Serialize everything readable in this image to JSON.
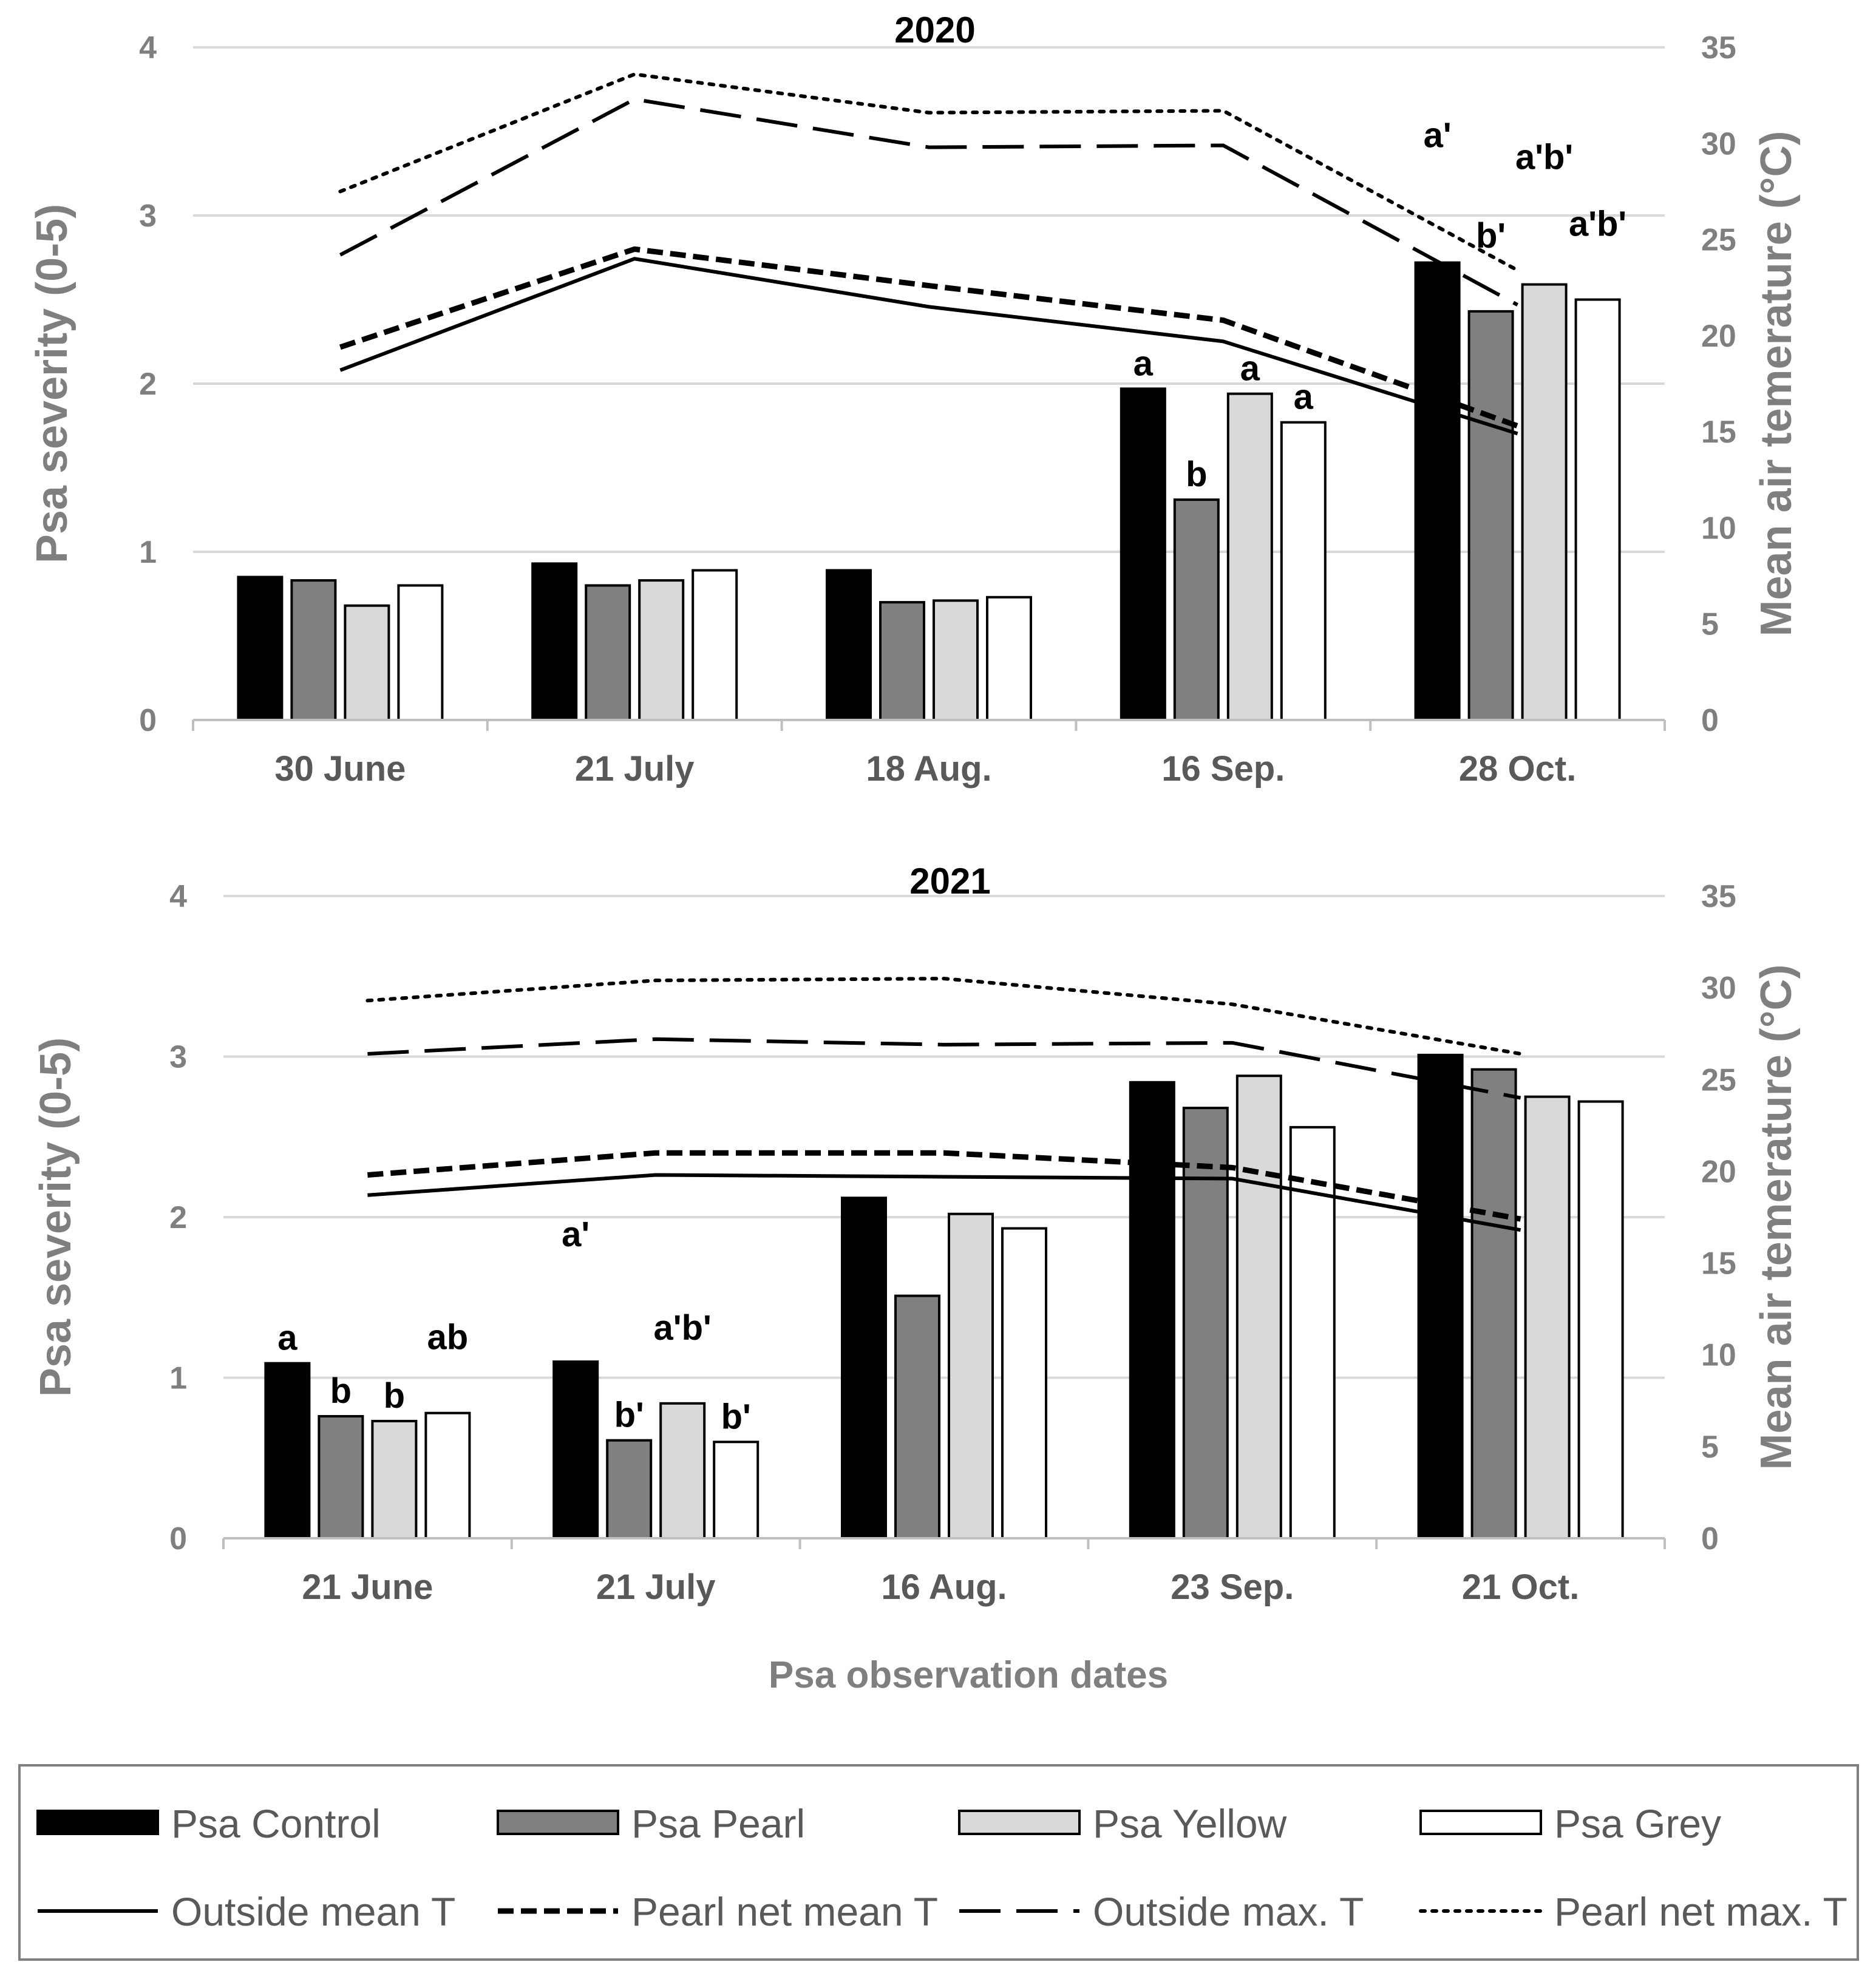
{
  "x_axis_title": "Psa observation dates",
  "legend": {
    "bars": [
      {
        "key": "control",
        "label": "Psa Control",
        "color": "#000000"
      },
      {
        "key": "pearl",
        "label": "Psa Pearl",
        "color": "#808080"
      },
      {
        "key": "yellow",
        "label": "Psa Yellow",
        "color": "#d9d9d9"
      },
      {
        "key": "grey",
        "label": "Psa Grey",
        "color": "#ffffff"
      }
    ],
    "lines": [
      {
        "key": "out_mean",
        "label": "Outside mean T",
        "style": "solid"
      },
      {
        "key": "net_mean",
        "label": "Pearl net mean T",
        "style": "short-dash"
      },
      {
        "key": "out_max",
        "label": "Outside max. T",
        "style": "long-dash"
      },
      {
        "key": "net_max",
        "label": "Pearl net max. T",
        "style": "dotted"
      }
    ]
  },
  "chart_data": [
    {
      "type": "bar",
      "title": "2020",
      "ylabel": "Psa severity (0-5)",
      "y2label": "Mean air temerature (°C)",
      "ylim": [
        0,
        4
      ],
      "yticks": [
        "0",
        "1",
        "2",
        "3",
        "4"
      ],
      "y2lim": [
        0,
        35
      ],
      "y2ticks": [
        "0",
        "5",
        "10",
        "15",
        "20",
        "25",
        "30",
        "35"
      ],
      "categories": [
        "30 June",
        "21 July",
        "18 Aug.",
        "16 Sep.",
        "28 Oct."
      ],
      "series": [
        {
          "name": "Psa Control",
          "values": [
            0.85,
            0.93,
            0.89,
            1.97,
            2.72
          ]
        },
        {
          "name": "Psa Pearl",
          "values": [
            0.83,
            0.8,
            0.7,
            1.31,
            2.43
          ]
        },
        {
          "name": "Psa Yellow",
          "values": [
            0.68,
            0.83,
            0.71,
            1.94,
            2.59
          ]
        },
        {
          "name": "Psa Grey",
          "values": [
            0.8,
            0.89,
            0.73,
            1.77,
            2.5
          ]
        }
      ],
      "lines": [
        {
          "name": "Outside mean T",
          "values": [
            18.2,
            24.0,
            21.5,
            19.7,
            14.9
          ]
        },
        {
          "name": "Pearl net mean T",
          "values": [
            19.4,
            24.5,
            22.6,
            20.8,
            15.3
          ]
        },
        {
          "name": "Outside max. T",
          "values": [
            24.2,
            32.3,
            29.8,
            29.9,
            21.6
          ]
        },
        {
          "name": "Pearl net max. T",
          "values": [
            27.5,
            33.6,
            31.6,
            31.7,
            23.4
          ]
        }
      ],
      "annotations": [
        {
          "text": "a",
          "category": 3,
          "series": 0,
          "row": 0
        },
        {
          "text": "b",
          "category": 3,
          "series": 1,
          "row": 0
        },
        {
          "text": "a",
          "category": 3,
          "series": 2,
          "row": 0
        },
        {
          "text": "a",
          "category": 3,
          "series": 3,
          "row": 0
        },
        {
          "text": "a'",
          "category": 4,
          "series": 0,
          "row": 2
        },
        {
          "text": "b'",
          "category": 4,
          "series": 1,
          "row": 1
        },
        {
          "text": "a'b'",
          "category": 4,
          "series": 2,
          "row": 2
        },
        {
          "text": "a'b'",
          "category": 4,
          "series": 3,
          "row": 1
        }
      ]
    },
    {
      "type": "bar",
      "title": "2021",
      "ylabel": "Psa severity (0-5)",
      "y2label": "Mean air temerature (°C)",
      "ylim": [
        0,
        4
      ],
      "yticks": [
        "0",
        "1",
        "2",
        "3",
        "4"
      ],
      "y2lim": [
        0,
        35
      ],
      "y2ticks": [
        "0",
        "5",
        "10",
        "15",
        "20",
        "25",
        "30",
        "35"
      ],
      "categories": [
        "21 June",
        "21 July",
        "16 Aug.",
        "23 Sep.",
        "21 Oct."
      ],
      "series": [
        {
          "name": "Psa Control",
          "values": [
            1.09,
            1.1,
            2.12,
            2.84,
            3.01
          ]
        },
        {
          "name": "Psa Pearl",
          "values": [
            0.76,
            0.61,
            1.51,
            2.68,
            2.92
          ]
        },
        {
          "name": "Psa Yellow",
          "values": [
            0.73,
            0.84,
            2.02,
            2.88,
            2.75
          ]
        },
        {
          "name": "Psa Grey",
          "values": [
            0.78,
            0.6,
            1.93,
            2.56,
            2.72
          ]
        }
      ],
      "lines": [
        {
          "name": "Outside mean T",
          "values": [
            18.7,
            19.8,
            19.7,
            19.6,
            16.8
          ]
        },
        {
          "name": "Pearl net mean T",
          "values": [
            19.8,
            21.0,
            21.0,
            20.2,
            17.4
          ]
        },
        {
          "name": "Outside max. T",
          "values": [
            26.4,
            27.2,
            26.9,
            27.0,
            24.0
          ]
        },
        {
          "name": "Pearl net max. T",
          "values": [
            29.3,
            30.4,
            30.5,
            29.1,
            26.4
          ]
        }
      ],
      "annotations": [
        {
          "text": "a",
          "category": 0,
          "series": 0,
          "row": 0
        },
        {
          "text": "b",
          "category": 0,
          "series": 1,
          "row": 0
        },
        {
          "text": "b",
          "category": 0,
          "series": 2,
          "row": 0
        },
        {
          "text": "ab",
          "category": 0,
          "series": 3,
          "row": 1
        },
        {
          "text": "a'",
          "category": 1,
          "series": 0,
          "row": 2
        },
        {
          "text": "b'",
          "category": 1,
          "series": 1,
          "row": 0
        },
        {
          "text": "a'b'",
          "category": 1,
          "series": 2,
          "row": 1
        },
        {
          "text": "b'",
          "category": 1,
          "series": 3,
          "row": 0
        }
      ]
    }
  ]
}
